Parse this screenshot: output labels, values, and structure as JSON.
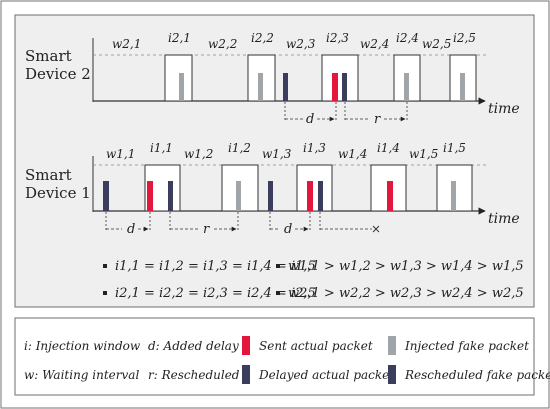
{
  "labels": {
    "device2_line1": "Smart",
    "device2_line2": "Device 2",
    "device1_line1": "Smart",
    "device1_line2": "Device 1",
    "time": "time",
    "d": "d",
    "r": "r"
  },
  "device2": {
    "windows": [
      "i2,1",
      "i2,2",
      "i2,3",
      "i2,4",
      "i2,5"
    ],
    "waits": [
      "w2,1",
      "w2,2",
      "w2,3",
      "w2,4",
      "w2,5"
    ]
  },
  "device1": {
    "windows": [
      "i1,1",
      "i1,2",
      "i1,3",
      "i1,4",
      "i1,5"
    ],
    "waits": [
      "w1,1",
      "w1,2",
      "w1,3",
      "w1,4",
      "w1,5"
    ]
  },
  "equations": {
    "eq1": "i1,1 = i1,2 = i1,3 = i1,4 = i1,5",
    "eq2": "w1,1 > w1,2 > w1,3 > w1,4 > w1,5",
    "eq3": "i2,1 = i2,2 = i2,3 = i2,4 = i2,5",
    "eq4": "w2,1 > w2,2 > w2,3 > w2,4 > w2,5"
  },
  "legend": {
    "injection_window": "i:  Injection window",
    "added_delay": "d:  Added delay",
    "sent_actual": "Sent actual packet",
    "injected_fake": "Injected fake packet",
    "waiting_interval": "w:  Waiting interval",
    "rescheduled": "r:  Rescheduled",
    "delayed_actual": "Delayed actual packet",
    "rescheduled_fake": "Rescheduled fake packet"
  },
  "colors": {
    "actual": "#e3173e",
    "fake": "#a0a5aa",
    "delayed": "#3b3d5c",
    "panel_bg": "#efefef",
    "border": "#6d6d6d"
  }
}
